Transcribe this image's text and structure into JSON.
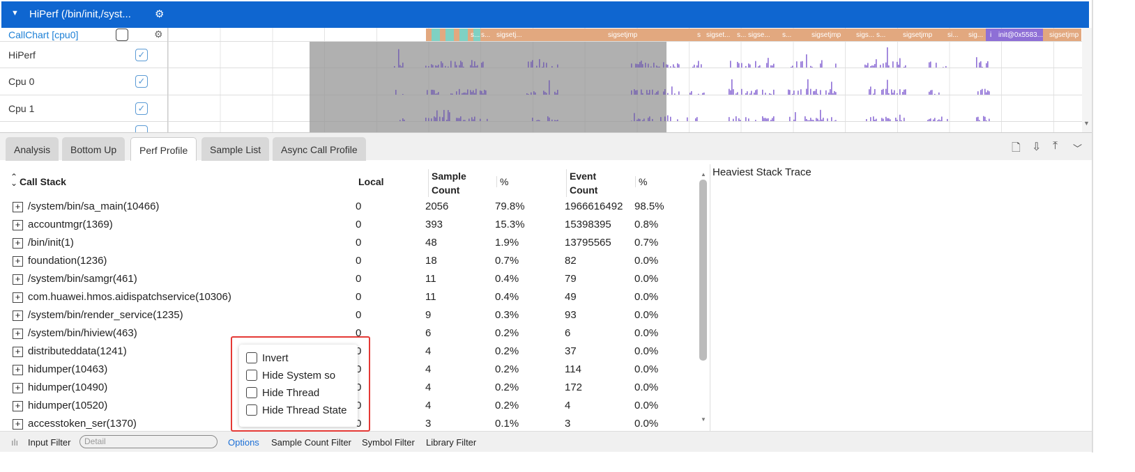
{
  "timeline": {
    "group_title": "HiPerf (/bin/init,/syst...",
    "callchart_label": "CallChart [cpu0]",
    "rows": [
      "HiPerf",
      "Cpu 0",
      "Cpu 1"
    ],
    "callchart_segments": [
      "s...",
      "s...",
      "sigsetj...",
      "sigsetjmp",
      "s",
      "sigset...",
      "s...",
      "sigse...",
      "s...",
      "sigsetjmp",
      "sigs...",
      "s...",
      "sigsetjmp",
      "si...",
      "sig...",
      "i",
      "init@0x5583...",
      "sigsetjmp"
    ],
    "colors": {
      "header": "#0f66d0",
      "callchart": "#e2a87f",
      "highlight": "#8e6fd6",
      "bars": "#8e6fd6"
    }
  },
  "tabs": [
    "Analysis",
    "Bottom Up",
    "Perf Profile",
    "Sample List",
    "Async Call Profile"
  ],
  "active_tab": "Perf Profile",
  "table": {
    "headers": {
      "call_stack": "Call Stack",
      "local": "Local",
      "sample_count": "Sample Count",
      "pct1": "%",
      "event_count": "Event Count",
      "pct2": "%"
    },
    "rows": [
      [
        "/system/bin/sa_main(10466)",
        "0",
        "2056",
        "79.8%",
        "1966616492",
        "98.5%"
      ],
      [
        "accountmgr(1369)",
        "0",
        "393",
        "15.3%",
        "15398395",
        "0.8%"
      ],
      [
        "/bin/init(1)",
        "0",
        "48",
        "1.9%",
        "13795565",
        "0.7%"
      ],
      [
        "foundation(1236)",
        "0",
        "18",
        "0.7%",
        "82",
        "0.0%"
      ],
      [
        "/system/bin/samgr(461)",
        "0",
        "11",
        "0.4%",
        "79",
        "0.0%"
      ],
      [
        "com.huawei.hmos.aidispatchservice(10306)",
        "0",
        "11",
        "0.4%",
        "49",
        "0.0%"
      ],
      [
        "/system/bin/render_service(1235)",
        "0",
        "9",
        "0.3%",
        "93",
        "0.0%"
      ],
      [
        "/system/bin/hiview(463)",
        "0",
        "6",
        "0.2%",
        "6",
        "0.0%"
      ],
      [
        "distributeddata(1241)",
        "0",
        "4",
        "0.2%",
        "37",
        "0.0%"
      ],
      [
        "hidumper(10463)",
        "0",
        "4",
        "0.2%",
        "114",
        "0.0%"
      ],
      [
        "hidumper(10490)",
        "0",
        "4",
        "0.2%",
        "172",
        "0.0%"
      ],
      [
        "hidumper(10520)",
        "0",
        "4",
        "0.2%",
        "4",
        "0.0%"
      ],
      [
        "accesstoken_ser(1370)",
        "0",
        "3",
        "0.1%",
        "3",
        "0.0%"
      ]
    ]
  },
  "heaviest": "Heaviest Stack Trace",
  "options_popup": [
    "Invert",
    "Hide System so",
    "Hide Thread",
    "Hide Thread State"
  ],
  "footer": {
    "input_filter": "Input Filter",
    "detail_placeholder": "Detail",
    "options": "Options",
    "sample_count_filter": "Sample Count Filter",
    "symbol_filter": "Symbol Filter",
    "library_filter": "Library Filter"
  }
}
